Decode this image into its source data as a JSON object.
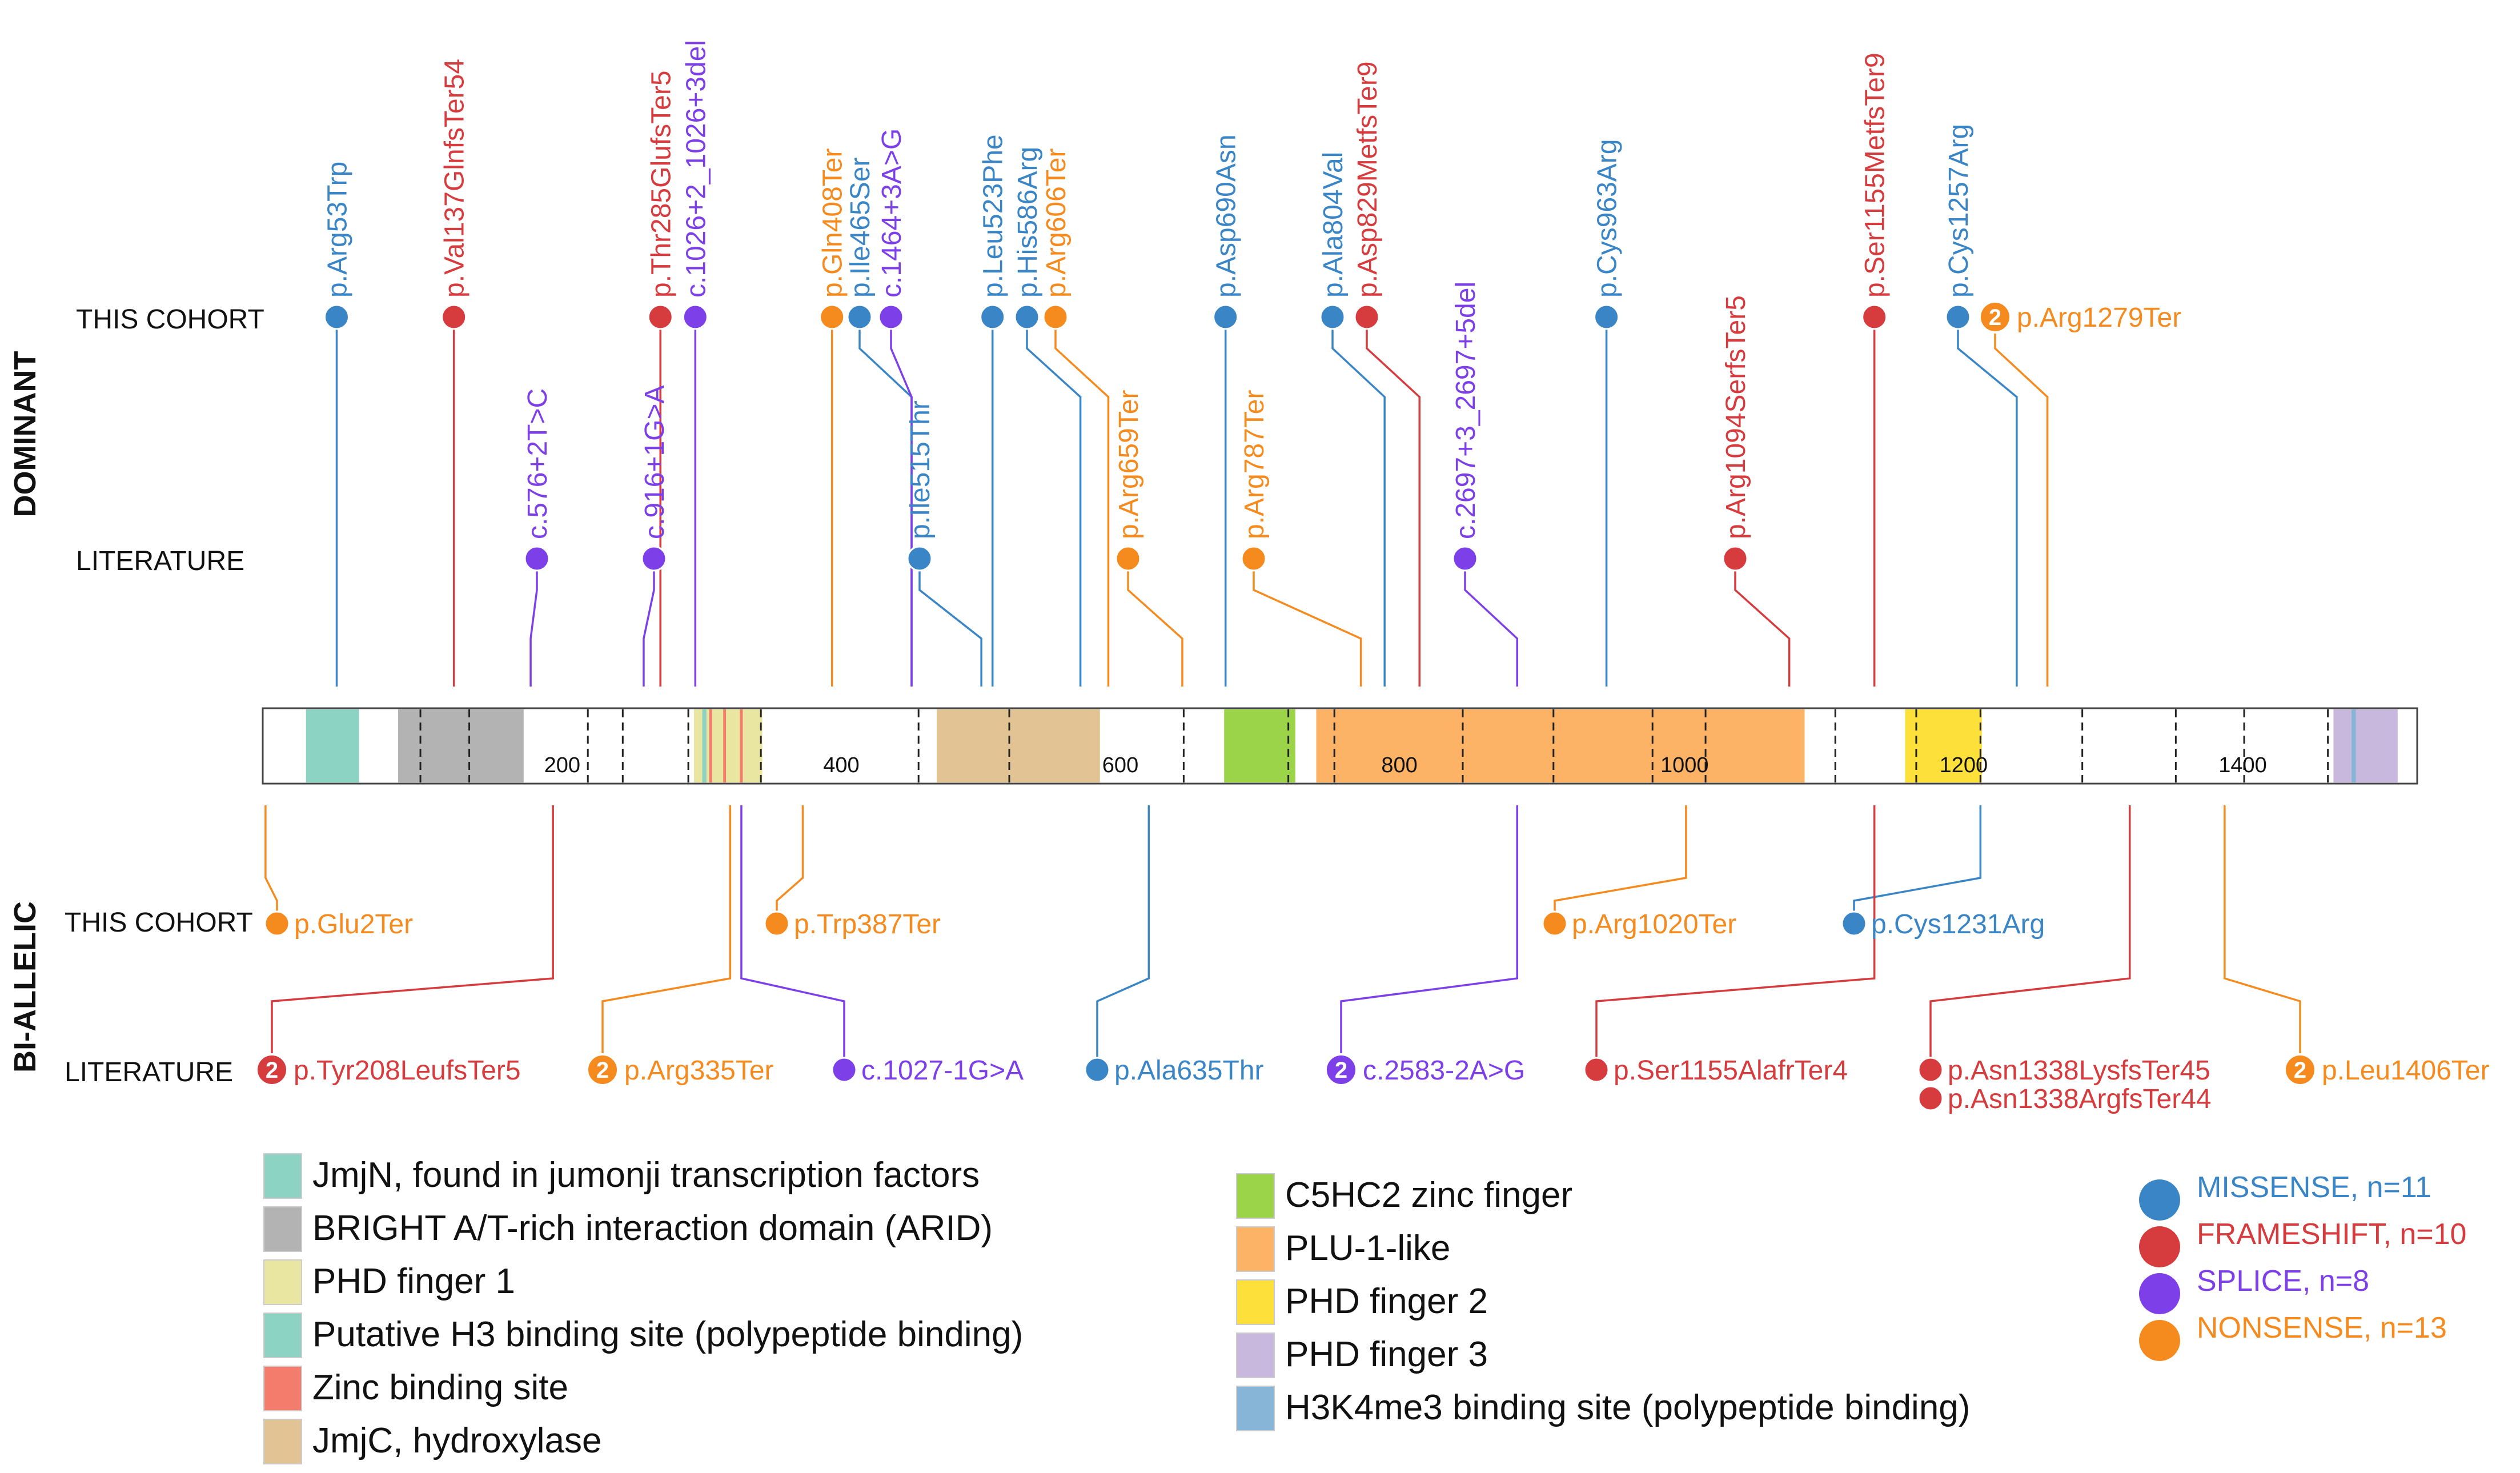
{
  "chart_data": {
    "type": "lollipop",
    "protein_length": 1544,
    "axis_ticks": [
      {
        "pos": 200,
        "label": "200"
      },
      {
        "pos": 400,
        "label": "400"
      },
      {
        "pos": 600,
        "label": "600"
      },
      {
        "pos": 800,
        "label": "800"
      },
      {
        "pos": 1000,
        "label": "1000"
      },
      {
        "pos": 1200,
        "label": "1200"
      },
      {
        "pos": 1400,
        "label": "1400"
      }
    ],
    "section_labels": {
      "dominant": "DOMINANT",
      "biallelic": "BI-ALLELIC"
    },
    "row_labels": {
      "dom_cohort": "THIS COHORT",
      "dom_lit": "LITERATURE",
      "bi_cohort": "THIS COHORT",
      "bi_lit": "LITERATURE"
    },
    "colors": {
      "missense": "#3a85c6",
      "frameshift": "#d63b3e",
      "splice": "#7d3fe8",
      "nonsense": "#f58b1f"
    },
    "domains": [
      {
        "key": "jmjn",
        "name": "JmjN, found in jumonji transcription factors",
        "color": "#8dd3c3",
        "ranges": [
          [
            31,
            69
          ]
        ]
      },
      {
        "key": "arid",
        "name": "BRIGHT A/T-rich interaction domain (ARID)",
        "color": "#b3b3b3",
        "ranges": [
          [
            97,
            187
          ]
        ]
      },
      {
        "key": "phd1",
        "name": "PHD finger 1",
        "color": "#e8e6a1",
        "ranges": [
          [
            309,
            358
          ]
        ]
      },
      {
        "key": "h3",
        "name": "Putative H3 binding site (polypeptide binding)",
        "color": "#8dd3c3",
        "ranges": [
          [
            315,
            318
          ]
        ]
      },
      {
        "key": "zinc",
        "name": "Zinc binding site",
        "color": "#f47c6c",
        "ranges": [
          [
            320,
            322
          ],
          [
            330,
            332
          ],
          [
            342,
            344
          ],
          [
            1192,
            1194
          ]
        ]
      },
      {
        "key": "jmjc",
        "name": "JmjC, hydroxylase",
        "color": "#e2c394",
        "ranges": [
          [
            483,
            600
          ]
        ]
      },
      {
        "key": "c5hc2",
        "name": "C5HC2 zinc finger",
        "color": "#9bd449",
        "ranges": [
          [
            689,
            740
          ]
        ]
      },
      {
        "key": "plu1",
        "name": "PLU-1-like",
        "color": "#fdb366",
        "ranges": [
          [
            755,
            1105
          ]
        ]
      },
      {
        "key": "phd2",
        "name": "PHD finger 2",
        "color": "#fde03a",
        "ranges": [
          [
            1177,
            1232
          ]
        ]
      },
      {
        "key": "phd3",
        "name": "PHD finger 3",
        "color": "#c8b8dd",
        "ranges": [
          [
            1484,
            1530
          ]
        ]
      },
      {
        "key": "h3k4",
        "name": "H3K4me3 binding site (polypeptide binding)",
        "color": "#86b5d8",
        "ranges": [
          [
            1497,
            1500
          ]
        ]
      }
    ],
    "dominant_cohort": [
      {
        "pos": 53,
        "label": "p.Arg53Trp",
        "type": "missense"
      },
      {
        "pos": 137,
        "label": "p.Val137GlnfsTer54",
        "type": "frameshift"
      },
      {
        "pos": 285,
        "label": "p.Thr285GlufsTer5",
        "type": "frameshift"
      },
      {
        "pos": 310,
        "label": "c.1026+2_1026+3del",
        "type": "splice"
      },
      {
        "pos": 408,
        "label": "p.Gln408Ter",
        "type": "nonsense"
      },
      {
        "pos": 465,
        "label": "p.Ile465Ser",
        "type": "missense"
      },
      {
        "pos": 465,
        "label": "c.1464+3A>G",
        "type": "splice"
      },
      {
        "pos": 523,
        "label": "p.Leu523Phe",
        "type": "missense"
      },
      {
        "pos": 586,
        "label": "p.His586Arg",
        "type": "missense"
      },
      {
        "pos": 606,
        "label": "p.Arg606Ter",
        "type": "nonsense"
      },
      {
        "pos": 690,
        "label": "p.Asp690Asn",
        "type": "missense"
      },
      {
        "pos": 804,
        "label": "p.Ala804Val",
        "type": "missense"
      },
      {
        "pos": 829,
        "label": "p.Asp829MetfsTer9",
        "type": "frameshift"
      },
      {
        "pos": 963,
        "label": "p.Cys963Arg",
        "type": "missense"
      },
      {
        "pos": 1155,
        "label": "p.Ser1155MetfsTer9",
        "type": "frameshift"
      },
      {
        "pos": 1257,
        "label": "p.Cys1257Arg",
        "type": "missense"
      },
      {
        "pos": 1279,
        "label": "p.Arg1279Ter",
        "type": "nonsense",
        "count": "2"
      }
    ],
    "dominant_literature": [
      {
        "pos": 192,
        "label": "c.576+2T>C",
        "type": "splice"
      },
      {
        "pos": 273,
        "label": "c.916+1G>A",
        "type": "splice"
      },
      {
        "pos": 515,
        "label": "p.Ile515Thr",
        "type": "missense"
      },
      {
        "pos": 659,
        "label": "p.Arg659Ter",
        "type": "nonsense"
      },
      {
        "pos": 787,
        "label": "p.Arg787Ter",
        "type": "nonsense"
      },
      {
        "pos": 899,
        "label": "c.2697+3_2697+5del",
        "type": "splice"
      },
      {
        "pos": 1094,
        "label": "p.Arg1094SerfsTer5",
        "type": "frameshift"
      }
    ],
    "biallelic_cohort": [
      {
        "pos": 2,
        "label": "p.Glu2Ter",
        "type": "nonsense"
      },
      {
        "pos": 387,
        "label": "p.Trp387Ter",
        "type": "nonsense"
      },
      {
        "pos": 1020,
        "label": "p.Arg1020Ter",
        "type": "nonsense"
      },
      {
        "pos": 1231,
        "label": "p.Cys1231Arg",
        "type": "missense"
      }
    ],
    "biallelic_literature": [
      {
        "pos": 208,
        "label": "p.Tyr208LeufsTer5",
        "type": "frameshift",
        "count": "2"
      },
      {
        "pos": 335,
        "label": "p.Arg335Ter",
        "type": "nonsense",
        "count": "2"
      },
      {
        "pos": 343,
        "label": "c.1027-1G>A",
        "type": "splice"
      },
      {
        "pos": 635,
        "label": "p.Ala635Thr",
        "type": "missense"
      },
      {
        "pos": 899,
        "label": "c.2583-2A>G",
        "type": "splice",
        "count": "2"
      },
      {
        "pos": 1155,
        "label": "p.Ser1155AlafrTer4",
        "type": "frameshift"
      },
      {
        "pos": 1338,
        "label": "p.Asn1338LysfsTer45",
        "type": "frameshift"
      },
      {
        "pos": 1338,
        "label": "p.Asn1338ArgfsTer44",
        "type": "frameshift"
      },
      {
        "pos": 1406,
        "label": "p.Leu1406Ter",
        "type": "nonsense",
        "count": "2"
      }
    ],
    "variant_types": [
      {
        "key": "missense",
        "label": "MISSENSE, n=11"
      },
      {
        "key": "frameshift",
        "label": "FRAMESHIFT, n=10"
      },
      {
        "key": "splice",
        "label": "SPLICE, n=8"
      },
      {
        "key": "nonsense",
        "label": "NONSENSE, n=13"
      }
    ]
  }
}
